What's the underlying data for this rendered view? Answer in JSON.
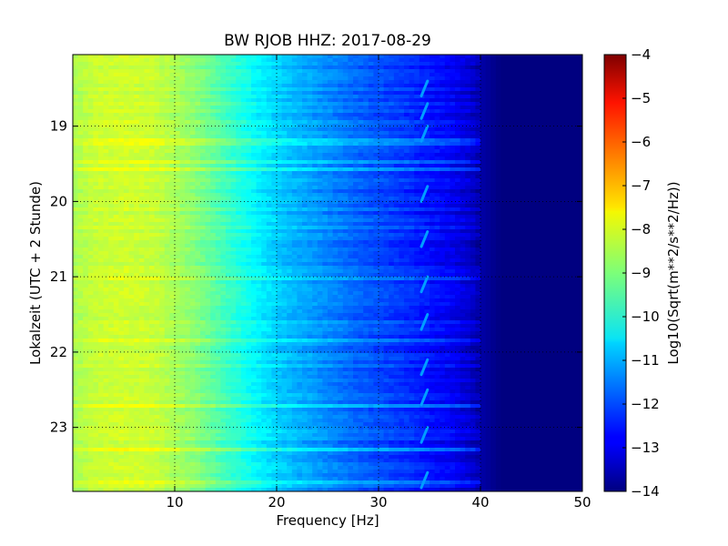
{
  "chart_data": {
    "type": "heatmap",
    "title": "BW RJOB HHZ: 2017-08-29",
    "xlabel": "Frequency [Hz]",
    "ylabel": "Lokalzeit (UTC + 2 Stunde)",
    "xlim": [
      0,
      50
    ],
    "ylim": [
      23.85,
      18.05
    ],
    "x_ticks": [
      10,
      20,
      30,
      40,
      50
    ],
    "y_ticks": [
      19,
      20,
      21,
      22,
      23
    ],
    "grid": true,
    "colormap": "jet",
    "colorbar": {
      "label": "Log10(Sqrt(m**2/s**2/Hz))",
      "range": [
        -14,
        -4
      ],
      "ticks": [
        -4,
        -5,
        -6,
        -7,
        -8,
        -9,
        -10,
        -11,
        -12,
        -13,
        -14
      ]
    },
    "spectral_profile": {
      "frequency_hz": [
        0,
        2,
        5,
        8,
        10,
        12,
        15,
        18,
        20,
        22,
        25,
        28,
        30,
        33,
        35,
        37,
        39,
        40,
        42,
        50
      ],
      "log10_amplitude": [
        -8.6,
        -8.3,
        -8.2,
        -8.3,
        -8.6,
        -8.9,
        -9.6,
        -10.3,
        -10.7,
        -11.0,
        -11.4,
        -11.8,
        -12.0,
        -12.3,
        -12.6,
        -12.8,
        -13.2,
        -13.6,
        -14.0,
        -14.0
      ]
    },
    "tonal_feature": {
      "frequency_hz": 34.5,
      "log10_amplitude": -11.2,
      "times": [
        18.5,
        18.8,
        19.1,
        19.9,
        20.5,
        21.1,
        21.6,
        22.2,
        22.6,
        23.1,
        23.7
      ]
    }
  }
}
